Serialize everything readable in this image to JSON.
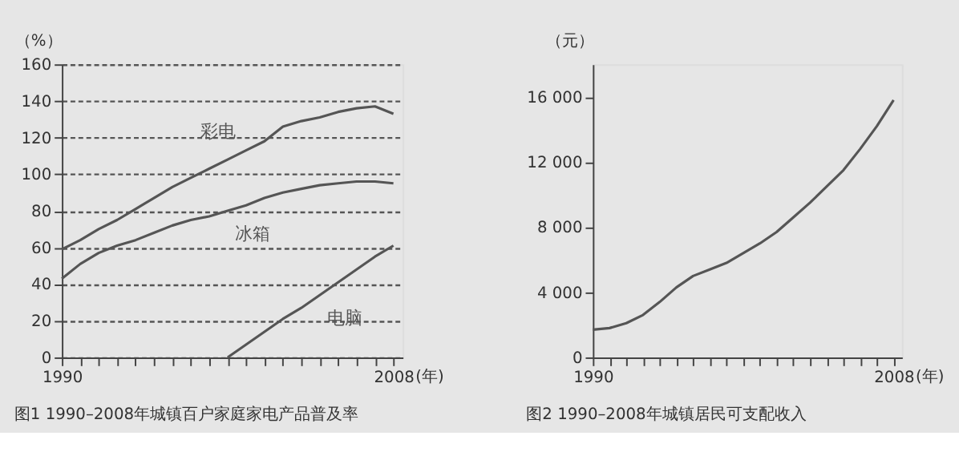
{
  "chart_data": [
    {
      "type": "line",
      "title": "图1  1990–2008年城镇百户家庭家电产品普及率",
      "ylabel": "（%）",
      "xlabel": "(年)",
      "x": [
        1990,
        1991,
        1992,
        1993,
        1994,
        1995,
        1996,
        1997,
        1998,
        1999,
        2000,
        2001,
        2002,
        2003,
        2004,
        2005,
        2006,
        2007,
        2008
      ],
      "series": [
        {
          "name": "彩电",
          "color": "#555555",
          "values": [
            59,
            64,
            70,
            75,
            81,
            87,
            93,
            98,
            103,
            108,
            113,
            118,
            126,
            129,
            131,
            134,
            136,
            137,
            133
          ]
        },
        {
          "name": "冰箱",
          "color": "#555555",
          "values": [
            43,
            51,
            57,
            61,
            64,
            68,
            72,
            75,
            77,
            80,
            83,
            87,
            90,
            92,
            94,
            95,
            96,
            96,
            95
          ]
        },
        {
          "name": "电脑",
          "color": "#555555",
          "x": [
            1999,
            2000,
            2001,
            2002,
            2003,
            2004,
            2005,
            2006,
            2007,
            2008
          ],
          "values": [
            0,
            7,
            14,
            21,
            27,
            34,
            41,
            48,
            55,
            61
          ]
        }
      ],
      "xlim": [
        1990,
        2008.5
      ],
      "ylim": [
        0,
        160
      ],
      "xticks": [
        1990,
        {
          "value": 1991,
          "label": null
        },
        {
          "value": 1992,
          "label": null
        },
        {
          "value": 1993,
          "label": null
        },
        {
          "value": 1994,
          "label": null
        },
        {
          "value": 1995,
          "label": null
        },
        {
          "value": 1996,
          "label": null
        },
        {
          "value": 1997,
          "label": null
        },
        {
          "value": 1998,
          "label": null
        },
        {
          "value": 1999,
          "label": null
        },
        {
          "value": 2000,
          "label": null
        },
        {
          "value": 2001,
          "label": null
        },
        {
          "value": 2002,
          "label": null
        },
        {
          "value": 2003,
          "label": null
        },
        {
          "value": 2004,
          "label": null
        },
        {
          "value": 2005,
          "label": null
        },
        {
          "value": 2006,
          "label": null
        },
        {
          "value": 2007,
          "label": null
        },
        2008
      ],
      "yticks": [
        0,
        20,
        40,
        60,
        80,
        100,
        120,
        140,
        160
      ],
      "grid": "y",
      "legend": false,
      "marker": "none",
      "line_style": "solid"
    },
    {
      "type": "line",
      "title": "图2  1990–2008年城镇居民可支配收入",
      "ylabel": "（元）",
      "xlabel": "(年)",
      "x": [
        1990,
        1991,
        1992,
        1993,
        1994,
        1995,
        1996,
        1997,
        1998,
        1999,
        2000,
        2001,
        2002,
        2003,
        2004,
        2005,
        2006,
        2007,
        2008
      ],
      "series": [
        {
          "color": "#555555",
          "values": [
            1700,
            1800,
            2100,
            2600,
            3400,
            4300,
            5000,
            5400,
            5800,
            6400,
            7000,
            7700,
            8600,
            9500,
            10500,
            11500,
            12800,
            14200,
            15800
          ]
        }
      ],
      "xlim": [
        1990,
        2008.5
      ],
      "ylim": [
        0,
        18000
      ],
      "xticks": [
        1990,
        {
          "value": 1991,
          "label": null
        },
        {
          "value": 1992,
          "label": null
        },
        {
          "value": 1993,
          "label": null
        },
        {
          "value": 1994,
          "label": null
        },
        {
          "value": 1995,
          "label": null
        },
        {
          "value": 1996,
          "label": null
        },
        {
          "value": 1997,
          "label": null
        },
        {
          "value": 1998,
          "label": null
        },
        {
          "value": 1999,
          "label": null
        },
        {
          "value": 2000,
          "label": null
        },
        {
          "value": 2001,
          "label": null
        },
        {
          "value": 2002,
          "label": null
        },
        {
          "value": 2003,
          "label": null
        },
        {
          "value": 2004,
          "label": null
        },
        {
          "value": 2005,
          "label": null
        },
        {
          "value": 2006,
          "label": null
        },
        {
          "value": 2007,
          "label": null
        },
        2008
      ],
      "yticks": [
        0,
        {
          "value": 4000,
          "label": "4 000"
        },
        {
          "value": 8000,
          "label": "8 000"
        },
        {
          "value": 12000,
          "label": "12 000"
        },
        {
          "value": 16000,
          "label": "16 000"
        }
      ],
      "grid": false,
      "legend": false,
      "marker": "none",
      "line_style": "solid"
    }
  ]
}
